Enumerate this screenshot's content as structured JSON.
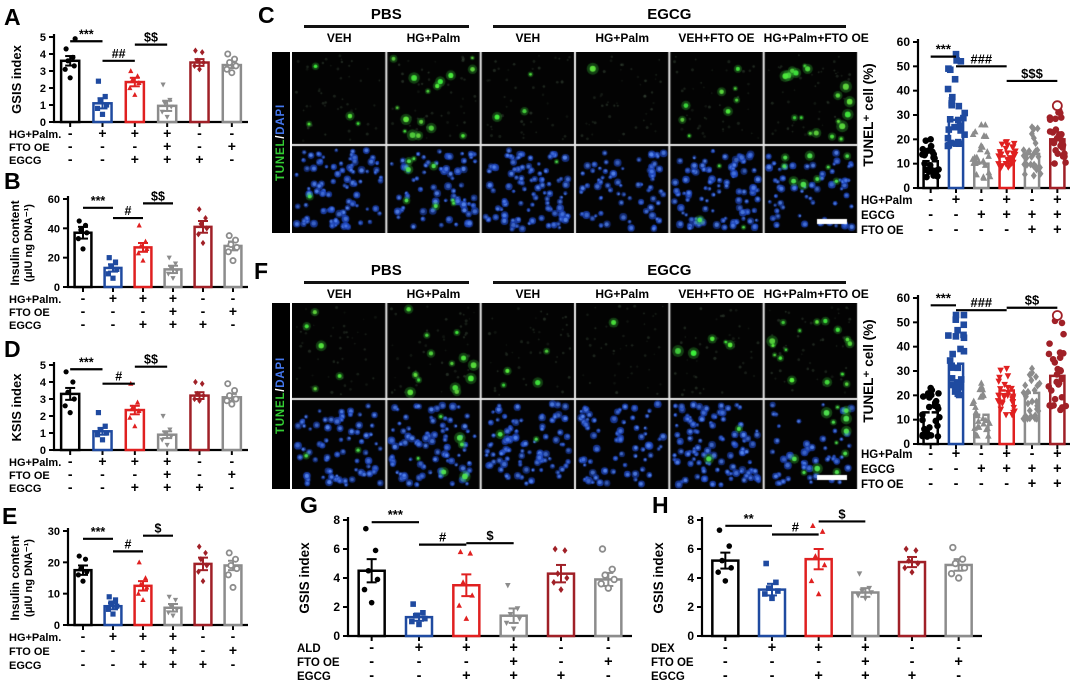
{
  "colors": {
    "black": "#000000",
    "blue": "#1f4aa0",
    "red": "#e02020",
    "gray": "#8c8c8c",
    "darkred": "#a02027",
    "green": "#35d435",
    "dapi_blue": "#2a5ad0",
    "white": "#ffffff"
  },
  "panels": {
    "A": "A",
    "B": "B",
    "C": "C",
    "D": "D",
    "E": "E",
    "F": "F",
    "G": "G",
    "H": "H"
  },
  "chart_data": [
    {
      "id": "A",
      "type": "bar",
      "ylabel": [
        "GSIS index"
      ],
      "ymax": 5,
      "ystep": 1,
      "bars": [
        3.6,
        1.1,
        2.35,
        0.95,
        3.5,
        3.35
      ],
      "errors": [
        0.28,
        0.3,
        0.25,
        0.3,
        0.2,
        0.18
      ],
      "bar_colors": [
        "black",
        "blue",
        "red",
        "gray",
        "darkred",
        "gray"
      ],
      "markers": [
        "circle",
        "square",
        "triangle-up",
        "triangle-down",
        "diamond",
        "circle-open"
      ],
      "points": [
        [
          2.6,
          3.1,
          3.3,
          3.6,
          3.8,
          4.3,
          4.9
        ],
        [
          0.45,
          0.8,
          1.0,
          1.2,
          1.5,
          2.4
        ],
        [
          1.6,
          2.0,
          2.3,
          2.5,
          2.7,
          3.0
        ],
        [
          0.3,
          0.6,
          0.9,
          1.1,
          1.3,
          2.2
        ],
        [
          3.1,
          3.3,
          3.5,
          3.6,
          4.1,
          4.2
        ],
        [
          2.9,
          3.1,
          3.3,
          3.5,
          3.7,
          4.0
        ]
      ],
      "sig": [
        {
          "a": 0,
          "b": 1,
          "label": "***",
          "y": 4.75
        },
        {
          "a": 1,
          "b": 2,
          "label": "##",
          "y": 3.6
        },
        {
          "a": 2,
          "b": 3,
          "label": "$$",
          "y": 4.55
        }
      ],
      "conditions": [
        {
          "label": "HG+Palm.",
          "values": [
            "-",
            "+",
            "+",
            "+",
            "-",
            "-"
          ]
        },
        {
          "label": "FTO OE",
          "values": [
            "-",
            "-",
            "-",
            "+",
            "-",
            "+"
          ]
        },
        {
          "label": "EGCG",
          "values": [
            "-",
            "-",
            "+",
            "+",
            "+",
            "-"
          ]
        }
      ]
    },
    {
      "id": "B",
      "type": "bar",
      "ylabel": [
        "Insulin content",
        "(μIU ng DNA⁻¹)"
      ],
      "ymax": 60,
      "ystep": 20,
      "bars": [
        37,
        13,
        27,
        12,
        41,
        28
      ],
      "errors": [
        4,
        2.5,
        3,
        2.5,
        4,
        3
      ],
      "bar_colors": [
        "black",
        "blue",
        "red",
        "gray",
        "darkred",
        "gray"
      ],
      "markers": [
        "circle",
        "square",
        "triangle-up",
        "triangle-down",
        "diamond",
        "circle-open"
      ],
      "points": [
        [
          26,
          33,
          37,
          39,
          42,
          45
        ],
        [
          6,
          9,
          12,
          14,
          17,
          20
        ],
        [
          18,
          23,
          26,
          28,
          31,
          42
        ],
        [
          6,
          9,
          11,
          13,
          16,
          20
        ],
        [
          30,
          36,
          40,
          43,
          47,
          53
        ],
        [
          18,
          24,
          27,
          29,
          32,
          35
        ]
      ],
      "sig": [
        {
          "a": 0,
          "b": 1,
          "label": "***",
          "y": 54
        },
        {
          "a": 1,
          "b": 2,
          "label": "#",
          "y": 47
        },
        {
          "a": 2,
          "b": 3,
          "label": "$$",
          "y": 57
        }
      ],
      "conditions": [
        {
          "label": "HG+Palm.",
          "values": [
            "-",
            "+",
            "+",
            "+",
            "-",
            "-"
          ]
        },
        {
          "label": "FTO OE",
          "values": [
            "-",
            "-",
            "-",
            "+",
            "-",
            "+"
          ]
        },
        {
          "label": "EGCG",
          "values": [
            "-",
            "-",
            "+",
            "+",
            "+",
            "-"
          ]
        }
      ]
    },
    {
      "id": "D",
      "type": "bar",
      "ylabel": [
        "KSIS index"
      ],
      "ymax": 5,
      "ystep": 1,
      "bars": [
        3.3,
        1.1,
        2.35,
        0.9,
        3.2,
        3.1
      ],
      "errors": [
        0.35,
        0.2,
        0.25,
        0.2,
        0.2,
        0.2
      ],
      "bar_colors": [
        "black",
        "blue",
        "red",
        "gray",
        "darkred",
        "gray"
      ],
      "markers": [
        "circle",
        "square",
        "triangle-up",
        "triangle-down",
        "diamond",
        "circle-open"
      ],
      "points": [
        [
          2.2,
          2.6,
          3.0,
          3.4,
          4.0,
          4.6
        ],
        [
          0.6,
          0.9,
          1.0,
          1.2,
          1.4,
          2.2
        ],
        [
          1.4,
          1.9,
          2.3,
          2.5,
          2.8,
          3.9
        ],
        [
          0.3,
          0.6,
          0.8,
          1.0,
          1.2,
          2.0
        ],
        [
          2.9,
          3.0,
          3.2,
          3.3,
          3.9,
          4.0
        ],
        [
          2.7,
          2.9,
          3.0,
          3.2,
          3.5,
          3.9
        ]
      ],
      "sig": [
        {
          "a": 0,
          "b": 1,
          "label": "***",
          "y": 4.75
        },
        {
          "a": 1,
          "b": 2,
          "label": "#",
          "y": 3.9
        },
        {
          "a": 2,
          "b": 3,
          "label": "$$",
          "y": 4.9
        }
      ],
      "conditions": [
        {
          "label": "HG+Palm.",
          "values": [
            "-",
            "+",
            "+",
            "+",
            "-",
            "-"
          ]
        },
        {
          "label": "FTO OE",
          "values": [
            "-",
            "-",
            "-",
            "+",
            "-",
            "+"
          ]
        },
        {
          "label": "EGCG",
          "values": [
            "-",
            "-",
            "+",
            "+",
            "+",
            "-"
          ]
        }
      ]
    },
    {
      "id": "E",
      "type": "bar",
      "ylabel": [
        "Insulin content",
        "(μIU ng DNA⁻¹)"
      ],
      "ymax": 30,
      "ystep": 10,
      "bars": [
        17.5,
        6,
        12.5,
        5.5,
        19.5,
        19
      ],
      "errors": [
        1.5,
        1,
        1.5,
        1.2,
        2,
        1.5
      ],
      "bar_colors": [
        "black",
        "blue",
        "red",
        "gray",
        "darkred",
        "gray"
      ],
      "markers": [
        "circle",
        "square",
        "triangle-up",
        "triangle-down",
        "diamond",
        "circle-open"
      ],
      "points": [
        [
          14,
          16,
          17,
          18,
          21,
          22
        ],
        [
          3.5,
          5,
          6,
          7,
          8,
          9
        ],
        [
          8,
          10,
          12,
          13,
          15,
          20
        ],
        [
          3,
          4,
          5,
          6,
          8,
          9
        ],
        [
          14,
          17,
          19,
          21,
          23,
          25
        ],
        [
          12,
          16,
          18,
          19,
          21,
          23
        ]
      ],
      "sig": [
        {
          "a": 0,
          "b": 1,
          "label": "***",
          "y": 27.5
        },
        {
          "a": 1,
          "b": 2,
          "label": "#",
          "y": 23.5
        },
        {
          "a": 2,
          "b": 3,
          "label": "$",
          "y": 28.5
        }
      ],
      "conditions": [
        {
          "label": "HG+Palm.",
          "values": [
            "-",
            "+",
            "+",
            "+",
            "-",
            "-"
          ]
        },
        {
          "label": "FTO OE",
          "values": [
            "-",
            "-",
            "-",
            "+",
            "-",
            "+"
          ]
        },
        {
          "label": "EGCG",
          "values": [
            "-",
            "-",
            "+",
            "+",
            "+",
            "-"
          ]
        }
      ]
    },
    {
      "id": "G",
      "type": "bar",
      "ylabel": [
        "GSIS index"
      ],
      "ymax": 8,
      "ystep": 2,
      "bars": [
        4.5,
        1.3,
        3.5,
        1.4,
        4.3,
        3.9
      ],
      "errors": [
        0.8,
        0.25,
        0.75,
        0.5,
        0.6,
        0.45
      ],
      "bar_colors": [
        "black",
        "blue",
        "red",
        "gray",
        "darkred",
        "gray"
      ],
      "markers": [
        "circle",
        "square",
        "triangle-up",
        "triangle-down",
        "diamond",
        "circle-open"
      ],
      "points": [
        [
          2.3,
          3.2,
          3.9,
          4.5,
          5.9,
          7.4
        ],
        [
          0.8,
          1.0,
          1.2,
          1.4,
          1.6,
          2.2
        ],
        [
          1.2,
          2.1,
          2.8,
          3.7,
          5.7,
          5.8
        ],
        [
          0.5,
          0.9,
          1.2,
          1.5,
          1.9,
          3.5
        ],
        [
          3.2,
          3.7,
          4.0,
          4.3,
          5.9,
          6.0
        ],
        [
          3.3,
          3.6,
          3.9,
          4.2,
          4.6,
          6.0
        ]
      ],
      "sig": [
        {
          "a": 0,
          "b": 1,
          "label": "***",
          "y": 7.85
        },
        {
          "a": 1,
          "b": 2,
          "label": "#",
          "y": 6.3
        },
        {
          "a": 2,
          "b": 3,
          "label": "$",
          "y": 6.4
        }
      ],
      "conditions": [
        {
          "label": "ALD",
          "values": [
            "-",
            "+",
            "+",
            "+",
            "-",
            "-"
          ]
        },
        {
          "label": "FTO OE",
          "values": [
            "-",
            "-",
            "-",
            "+",
            "-",
            "+"
          ]
        },
        {
          "label": "EGCG",
          "values": [
            "-",
            "-",
            "+",
            "+",
            "+",
            "-"
          ]
        }
      ]
    },
    {
      "id": "H",
      "type": "bar",
      "ylabel": [
        "GSIS index"
      ],
      "ymax": 8,
      "ystep": 2,
      "bars": [
        5.2,
        3.2,
        5.3,
        3.0,
        5.1,
        4.9
      ],
      "errors": [
        0.55,
        0.4,
        0.7,
        0.3,
        0.35,
        0.4
      ],
      "bar_colors": [
        "black",
        "blue",
        "red",
        "gray",
        "darkred",
        "gray"
      ],
      "markers": [
        "circle",
        "square",
        "triangle-up",
        "triangle-down",
        "diamond",
        "circle-open"
      ],
      "points": [
        [
          3.8,
          4.4,
          4.7,
          5.2,
          6.2,
          7.3
        ],
        [
          2.6,
          2.9,
          3.1,
          3.3,
          3.7,
          5.0
        ],
        [
          2.9,
          3.8,
          4.9,
          5.5,
          7.2,
          7.6
        ],
        [
          2.6,
          2.8,
          3.0,
          3.1,
          3.3,
          4.3
        ],
        [
          4.4,
          4.7,
          5.0,
          5.2,
          5.9,
          6.0
        ],
        [
          4.0,
          4.3,
          4.7,
          5.0,
          5.3,
          6.1
        ]
      ],
      "sig": [
        {
          "a": 0,
          "b": 1,
          "label": "**",
          "y": 7.6
        },
        {
          "a": 1,
          "b": 2,
          "label": "#",
          "y": 7.0
        },
        {
          "a": 2,
          "b": 3,
          "label": "$",
          "y": 7.9
        }
      ],
      "conditions": [
        {
          "label": "DEX",
          "values": [
            "-",
            "+",
            "+",
            "+",
            "-",
            "-"
          ]
        },
        {
          "label": "FTO OE",
          "values": [
            "-",
            "-",
            "-",
            "+",
            "-",
            "+"
          ]
        },
        {
          "label": "EGCG",
          "values": [
            "-",
            "-",
            "+",
            "+",
            "+",
            "-"
          ]
        }
      ]
    },
    {
      "id": "C",
      "type": "bar",
      "ylabel": [
        "TUNEL⁺ cell (%)"
      ],
      "ymax": 60,
      "ystep": 10,
      "bars": [
        11,
        28,
        10,
        13,
        14,
        20
      ],
      "errors": [
        1.5,
        2.5,
        1.5,
        1.2,
        1.5,
        2
      ],
      "err_color": "white",
      "bar_colors": [
        "black",
        "blue",
        "gray",
        "red",
        "gray",
        "darkred"
      ],
      "markers": [
        "circle",
        "square",
        "triangle-up",
        "triangle-down",
        "diamond",
        "circle"
      ],
      "open_max": [
        false,
        false,
        false,
        false,
        false,
        true
      ],
      "points": [
        {
          "min": 4,
          "max": 20,
          "n": 24
        },
        {
          "min": 17,
          "max": 55,
          "n": 28
        },
        {
          "min": 4,
          "max": 26,
          "n": 26
        },
        {
          "min": 8,
          "max": 19,
          "n": 28
        },
        {
          "min": 5,
          "max": 25,
          "n": 26
        },
        {
          "min": 10,
          "max": 33,
          "n": 28
        }
      ],
      "sig": [
        {
          "a": 0,
          "b": 1,
          "label": "***",
          "y": 54
        },
        {
          "a": 1,
          "b": 3,
          "label": "###",
          "y": 50
        },
        {
          "a": 3,
          "b": 5,
          "label": "$$$",
          "y": 44
        }
      ],
      "conditions": [
        {
          "label": "HG+Palm",
          "values": [
            "-",
            "+",
            "-",
            "+",
            "-",
            "+"
          ]
        },
        {
          "label": "EGCG",
          "values": [
            "-",
            "-",
            "+",
            "+",
            "+",
            "+"
          ]
        },
        {
          "label": "FTO OE",
          "values": [
            "-",
            "-",
            "-",
            "-",
            "+",
            "+"
          ]
        }
      ]
    },
    {
      "id": "F",
      "type": "bar",
      "ylabel": [
        "TUNEL⁺ cell (%)"
      ],
      "ymax": 60,
      "ystep": 10,
      "bars": [
        13,
        33,
        12,
        22,
        21,
        28
      ],
      "errors": [
        2,
        3,
        2,
        2,
        2,
        3
      ],
      "err_color": "white",
      "bar_colors": [
        "black",
        "blue",
        "gray",
        "red",
        "gray",
        "darkred"
      ],
      "markers": [
        "circle",
        "square",
        "triangle-up",
        "triangle-down",
        "diamond",
        "circle"
      ],
      "open_max": [
        false,
        false,
        false,
        false,
        false,
        true
      ],
      "points": [
        {
          "min": 3,
          "max": 23,
          "n": 26
        },
        {
          "min": 20,
          "max": 53,
          "n": 28
        },
        {
          "min": 3,
          "max": 25,
          "n": 26
        },
        {
          "min": 12,
          "max": 31,
          "n": 28
        },
        {
          "min": 10,
          "max": 31,
          "n": 26
        },
        {
          "min": 14,
          "max": 52,
          "n": 28
        }
      ],
      "sig": [
        {
          "a": 0,
          "b": 1,
          "label": "***",
          "y": 57
        },
        {
          "a": 1,
          "b": 3,
          "label": "###",
          "y": 55
        },
        {
          "a": 3,
          "b": 5,
          "label": "$$",
          "y": 56
        }
      ],
      "conditions": [
        {
          "label": "HG+Palm",
          "values": [
            "-",
            "+",
            "-",
            "+",
            "-",
            "+"
          ]
        },
        {
          "label": "EGCG",
          "values": [
            "-",
            "-",
            "+",
            "+",
            "+",
            "+"
          ]
        },
        {
          "label": "FTO OE",
          "values": [
            "-",
            "-",
            "-",
            "-",
            "+",
            "+"
          ]
        }
      ]
    }
  ],
  "micro_panels": [
    {
      "id": "C",
      "row_label_parts": [
        {
          "text": "TUNEL",
          "color": "#33cc33"
        },
        {
          "text": "/",
          "color": "#ffffff"
        },
        {
          "text": "DAPI",
          "color": "#4477ee"
        }
      ],
      "groups": [
        {
          "label": "PBS",
          "from": 0,
          "to": 1
        },
        {
          "label": "EGCG",
          "from": 2,
          "to": 5
        }
      ],
      "columns": [
        "VEH",
        "HG+Palm",
        "VEH",
        "HG+Palm",
        "VEH+FTO OE",
        "HG+Palm+FTO OE"
      ],
      "top_green": [
        4,
        16,
        3,
        1,
        8,
        18
      ],
      "bottom_blue": [
        90,
        65,
        95,
        70,
        88,
        62
      ],
      "bottom_green": [
        1,
        8,
        1,
        0,
        3,
        9
      ],
      "scale_bar": true
    },
    {
      "id": "F",
      "row_label_parts": [
        {
          "text": "TUNEL",
          "color": "#33cc33"
        },
        {
          "text": "/",
          "color": "#ffffff"
        },
        {
          "text": "DAPI",
          "color": "#4477ee"
        }
      ],
      "groups": [
        {
          "label": "PBS",
          "from": 0,
          "to": 1
        },
        {
          "label": "EGCG",
          "from": 2,
          "to": 5
        }
      ],
      "columns": [
        "VEH",
        "HG+Palm",
        "VEH",
        "HG+Palm",
        "VEH+FTO OE",
        "HG+Palm+FTO OE"
      ],
      "top_green": [
        5,
        14,
        4,
        1,
        5,
        16
      ],
      "bottom_blue": [
        72,
        82,
        90,
        68,
        100,
        48
      ],
      "bottom_green": [
        2,
        6,
        2,
        0,
        2,
        12
      ],
      "scale_bar": true
    }
  ]
}
